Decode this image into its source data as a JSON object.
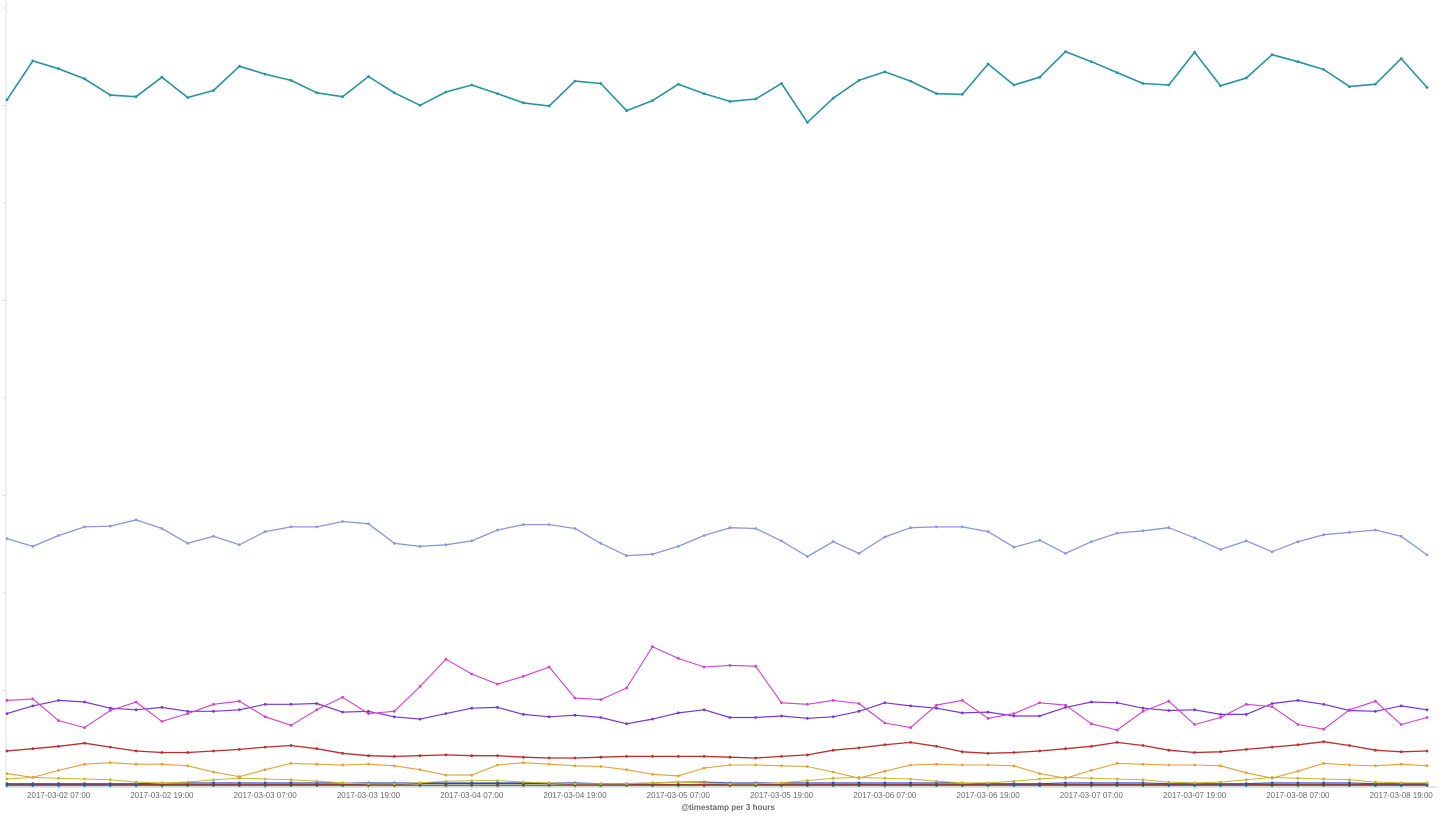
{
  "chart_data": {
    "type": "line",
    "title": "",
    "xlabel": "@timestamp per 3 hours",
    "ylabel": "",
    "ylim": [
      0,
      100
    ],
    "grid": false,
    "legend": "none",
    "x_ticks": [
      {
        "i": 2,
        "label": "2017-03-02 07:00"
      },
      {
        "i": 6,
        "label": "2017-03-02 19:00"
      },
      {
        "i": 10,
        "label": "2017-03-03 07:00"
      },
      {
        "i": 14,
        "label": "2017-03-03 19:00"
      },
      {
        "i": 18,
        "label": "2017-03-04 07:00"
      },
      {
        "i": 22,
        "label": "2017-03-04 19:00"
      },
      {
        "i": 26,
        "label": "2017-03-05 07:00"
      },
      {
        "i": 30,
        "label": "2017-03-05 19:00"
      },
      {
        "i": 34,
        "label": "2017-03-06 07:00"
      },
      {
        "i": 38,
        "label": "2017-03-06 19:00"
      },
      {
        "i": 42,
        "label": "2017-03-07 07:00"
      },
      {
        "i": 46,
        "label": "2017-03-07 19:00"
      },
      {
        "i": 50,
        "label": "2017-03-08 07:00"
      },
      {
        "i": 54,
        "label": "2017-03-08 19:00"
      }
    ],
    "x_count": 56,
    "series": [
      {
        "color": "#2494a4",
        "width": 1.6,
        "values": [
          88.2,
          93.2,
          92.2,
          90.9,
          88.8,
          88.6,
          91.1,
          88.5,
          89.4,
          92.5,
          91.5,
          90.7,
          89.1,
          88.6,
          91.2,
          89.1,
          87.5,
          89.2,
          90.1,
          89.0,
          87.8,
          87.4,
          90.6,
          90.3,
          86.8,
          88.1,
          90.2,
          89.0,
          88.0,
          88.3,
          90.3,
          85.3,
          88.4,
          90.7,
          91.8,
          90.6,
          89.0,
          88.9,
          92.8,
          90.1,
          91.1,
          94.4,
          93.1,
          91.7,
          90.3,
          90.1,
          94.3,
          90.0,
          91.0,
          94.0,
          93.1,
          92.1,
          89.9,
          90.2,
          93.5,
          89.8
        ]
      },
      {
        "color": "#8798e0",
        "width": 1.3,
        "values": [
          31.8,
          30.8,
          32.2,
          33.3,
          33.4,
          34.2,
          33.1,
          31.2,
          32.1,
          31.0,
          32.7,
          33.3,
          33.3,
          34.0,
          33.7,
          31.2,
          30.8,
          31.0,
          31.5,
          32.9,
          33.6,
          33.6,
          33.1,
          31.2,
          29.6,
          29.8,
          30.8,
          32.2,
          33.2,
          33.1,
          31.5,
          29.5,
          31.4,
          29.9,
          32.0,
          33.2,
          33.3,
          33.3,
          32.7,
          30.7,
          31.6,
          29.9,
          31.4,
          32.5,
          32.8,
          33.2,
          31.9,
          30.4,
          31.5,
          30.1,
          31.4,
          32.3,
          32.6,
          32.9,
          32.1,
          29.7
        ]
      },
      {
        "color": "#d43fce",
        "width": 1.1,
        "values": [
          11.0,
          11.2,
          8.4,
          7.5,
          9.7,
          10.8,
          8.3,
          9.3,
          10.5,
          10.9,
          8.9,
          7.8,
          9.8,
          11.4,
          9.3,
          9.6,
          12.8,
          16.3,
          14.4,
          13.1,
          14.1,
          15.3,
          11.3,
          11.1,
          12.6,
          17.9,
          16.4,
          15.3,
          15.5,
          15.4,
          10.7,
          10.5,
          11.0,
          10.6,
          8.1,
          7.5,
          10.4,
          11.0,
          8.7,
          9.3,
          10.7,
          10.4,
          8.0,
          7.2,
          9.6,
          10.9,
          7.9,
          8.8,
          10.5,
          10.2,
          7.9,
          7.3,
          9.8,
          10.9,
          7.9,
          8.8
        ]
      },
      {
        "color": "#7a35d6",
        "width": 1.2,
        "values": [
          9.3,
          10.3,
          11.0,
          10.8,
          10.0,
          9.8,
          10.1,
          9.6,
          9.6,
          9.8,
          10.5,
          10.5,
          10.6,
          9.5,
          9.6,
          8.9,
          8.6,
          9.3,
          10.0,
          10.1,
          9.2,
          8.9,
          9.1,
          8.8,
          8.0,
          8.6,
          9.4,
          9.8,
          8.8,
          8.8,
          9.0,
          8.7,
          8.9,
          9.6,
          10.7,
          10.3,
          10.0,
          9.4,
          9.5,
          9.0,
          9.0,
          10.1,
          10.8,
          10.7,
          10.0,
          9.7,
          9.8,
          9.2,
          9.2,
          10.6,
          11.0,
          10.5,
          9.7,
          9.6,
          10.3,
          9.8
        ]
      },
      {
        "color": "#be2d2d",
        "width": 1.3,
        "values": [
          4.5,
          4.8,
          5.1,
          5.5,
          5.0,
          4.5,
          4.3,
          4.3,
          4.5,
          4.7,
          5.0,
          5.2,
          4.8,
          4.2,
          3.9,
          3.8,
          3.9,
          4.0,
          3.9,
          3.9,
          3.7,
          3.6,
          3.6,
          3.7,
          3.8,
          3.8,
          3.8,
          3.8,
          3.7,
          3.6,
          3.8,
          4.0,
          4.6,
          4.9,
          5.3,
          5.6,
          5.1,
          4.4,
          4.2,
          4.3,
          4.5,
          4.8,
          5.1,
          5.6,
          5.2,
          4.6,
          4.3,
          4.4,
          4.7,
          5.0,
          5.3,
          5.7,
          5.2,
          4.6,
          4.4,
          4.5
        ]
      },
      {
        "color": "#e6a034",
        "width": 1.1,
        "values": [
          1.6,
          1.1,
          2.0,
          2.8,
          3.0,
          2.8,
          2.8,
          2.6,
          1.8,
          1.2,
          2.1,
          2.9,
          2.8,
          2.7,
          2.8,
          2.6,
          2.1,
          1.4,
          1.4,
          2.7,
          3.0,
          2.8,
          2.6,
          2.5,
          2.1,
          1.5,
          1.3,
          2.3,
          2.7,
          2.7,
          2.6,
          2.5,
          1.8,
          1.0,
          1.9,
          2.7,
          2.8,
          2.7,
          2.7,
          2.6,
          1.6,
          1.0,
          2.0,
          2.9,
          2.8,
          2.7,
          2.7,
          2.6,
          1.7,
          1.0,
          1.9,
          2.9,
          2.7,
          2.6,
          2.8,
          2.6
        ]
      },
      {
        "color": "#c9b427",
        "width": 1.0,
        "values": [
          0.9,
          1.1,
          1.0,
          0.9,
          0.8,
          0.5,
          0.4,
          0.5,
          0.8,
          1.0,
          0.9,
          0.8,
          0.6,
          0.4,
          0.3,
          0.3,
          0.4,
          0.6,
          0.7,
          0.7,
          0.5,
          0.4,
          0.3,
          0.3,
          0.3,
          0.4,
          0.5,
          0.4,
          0.3,
          0.3,
          0.4,
          0.7,
          1.0,
          1.1,
          1.0,
          0.9,
          0.6,
          0.4,
          0.4,
          0.6,
          0.9,
          1.1,
          1.0,
          0.9,
          0.8,
          0.5,
          0.4,
          0.5,
          0.8,
          1.1,
          1.0,
          0.9,
          0.8,
          0.5,
          0.4,
          0.4
        ]
      },
      {
        "color": "#2a4fc7",
        "width": 1.1,
        "values": [
          0.3,
          0.3,
          0.3,
          0.3,
          0.3,
          0.3,
          0.4,
          0.4,
          0.4,
          0.4,
          0.4,
          0.4,
          0.4,
          0.4,
          0.4,
          0.4,
          0.4,
          0.4,
          0.4,
          0.4,
          0.4,
          0.4,
          0.4,
          0.3,
          0.3,
          0.4,
          0.5,
          0.5,
          0.4,
          0.4,
          0.4,
          0.4,
          0.4,
          0.4,
          0.4,
          0.4,
          0.4,
          0.4,
          0.3,
          0.3,
          0.3,
          0.4,
          0.4,
          0.4,
          0.4,
          0.3,
          0.3,
          0.3,
          0.3,
          0.4,
          0.4,
          0.4,
          0.4,
          0.3,
          0.3,
          0.3
        ]
      },
      {
        "color": "#8c2a2a",
        "width": 1.0,
        "values": [
          0.2,
          0.2,
          0.2,
          0.2,
          0.2,
          0.2,
          0.2,
          0.2,
          0.2,
          0.2,
          0.2,
          0.2,
          0.2,
          0.2,
          0.2,
          0.2,
          0.3,
          0.3,
          0.3,
          0.3,
          0.3,
          0.3,
          0.2,
          0.2,
          0.2,
          0.2,
          0.2,
          0.2,
          0.2,
          0.2,
          0.2,
          0.2,
          0.2,
          0.2,
          0.2,
          0.2,
          0.2,
          0.2,
          0.2,
          0.2,
          0.2,
          0.2,
          0.2,
          0.2,
          0.2,
          0.2,
          0.2,
          0.2,
          0.2,
          0.2,
          0.2,
          0.2,
          0.2,
          0.2,
          0.2,
          0.2
        ]
      },
      {
        "color": "#3a8f3a",
        "width": 1.0,
        "values": [
          0.1,
          0.1,
          0.1,
          0.1,
          0.1,
          0.1,
          0.1,
          0.1,
          0.1,
          0.1,
          0.1,
          0.1,
          0.1,
          0.1,
          0.1,
          0.1,
          0.1,
          0.1,
          0.1,
          0.1,
          0.1,
          0.1,
          0.1,
          0.1,
          0.1,
          0.1,
          0.1,
          0.1,
          0.1,
          0.1,
          0.1,
          0.1,
          0.1,
          0.1,
          0.1,
          0.1,
          0.1,
          0.1,
          0.1,
          0.1,
          0.1,
          0.1,
          0.1,
          0.1,
          0.1,
          0.1,
          0.1,
          0.1,
          0.1,
          0.1,
          0.1,
          0.1,
          0.1,
          0.1,
          0.1,
          0.1
        ]
      },
      {
        "color": "#27a3b8",
        "width": 1.0,
        "values": [
          0.05,
          0.05,
          0.05,
          0.05,
          0.05,
          0.05,
          0.05,
          0.05,
          0.05,
          0.05,
          0.05,
          0.05,
          0.05,
          0.05,
          0.05,
          0.05,
          0.05,
          0.05,
          0.05,
          0.05,
          0.05,
          0.05,
          0.05,
          0.05,
          0.05,
          0.05,
          0.05,
          0.05,
          0.05,
          0.05,
          0.05,
          0.05,
          0.05,
          0.05,
          0.05,
          0.05,
          0.05,
          0.05,
          0.05,
          0.05,
          0.05,
          0.05,
          0.05,
          0.05,
          0.05,
          0.05,
          0.05,
          0.05,
          0.05,
          0.05,
          0.05,
          0.05,
          0.05,
          0.05,
          0.05,
          0.05
        ]
      }
    ]
  }
}
